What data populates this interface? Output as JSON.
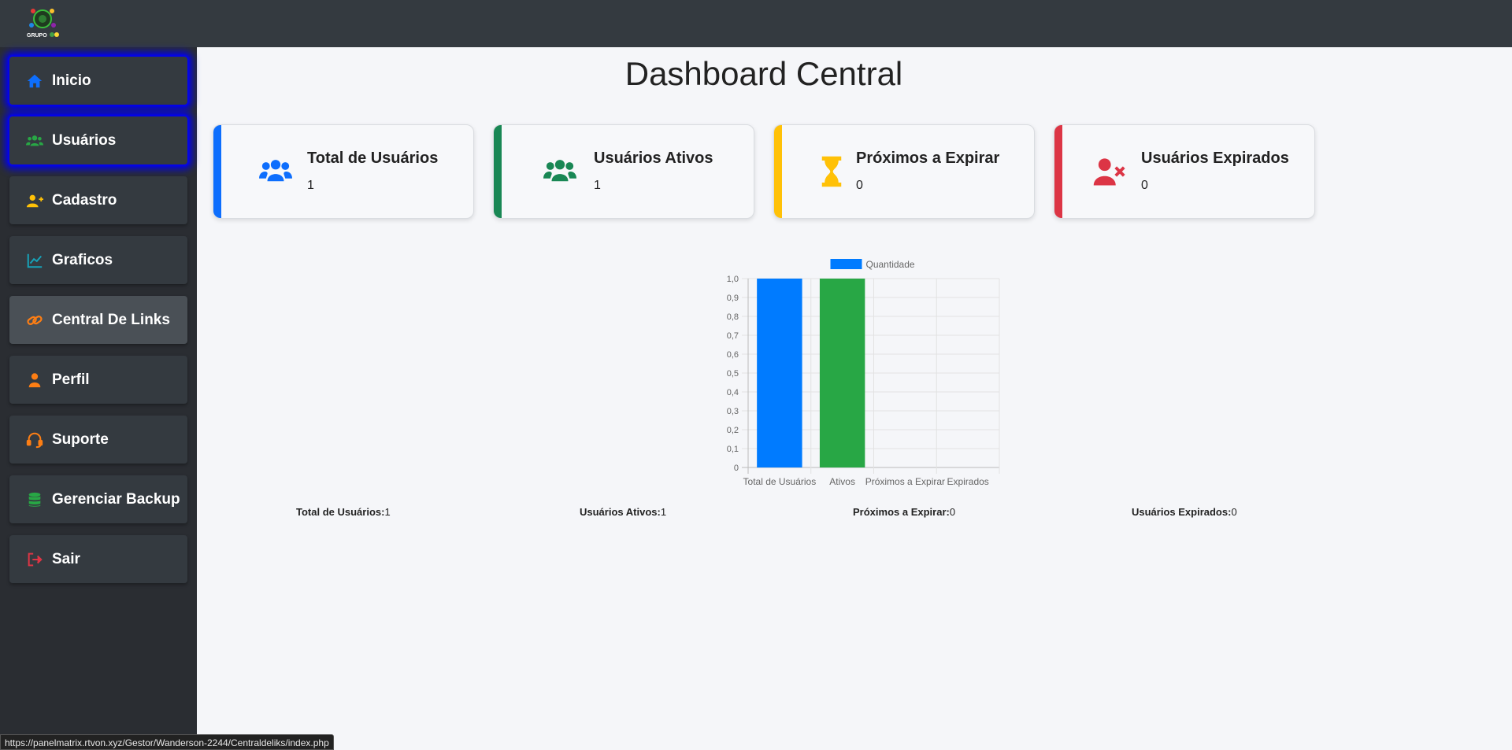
{
  "header": {
    "logo_text": "GRUPO"
  },
  "sidebar": {
    "items": [
      {
        "label": "Inicio",
        "icon": "home-icon",
        "color": "#0d6efd"
      },
      {
        "label": "Usuários",
        "icon": "users-icon",
        "color": "#28a745"
      },
      {
        "label": "Cadastro",
        "icon": "user-plus-icon",
        "color": "#ffc107"
      },
      {
        "label": "Graficos",
        "icon": "chart-line-icon",
        "color": "#17a2b8"
      },
      {
        "label": "Central De Links",
        "icon": "link-icon",
        "color": "#fd7e14"
      },
      {
        "label": "Perfil",
        "icon": "user-icon",
        "color": "#fd7e14"
      },
      {
        "label": "Suporte",
        "icon": "headset-icon",
        "color": "#fd7e14"
      },
      {
        "label": "Gerenciar Backup",
        "icon": "database-icon",
        "color": "#28a745"
      },
      {
        "label": "Sair",
        "icon": "sign-out-icon",
        "color": "#dc3545"
      }
    ]
  },
  "main": {
    "title": "Dashboard Central",
    "cards": [
      {
        "title": "Total de Usuários",
        "value": "1",
        "color": "#0d6efd",
        "icon": "users-icon"
      },
      {
        "title": "Usuários Ativos",
        "value": "1",
        "color": "#198754",
        "icon": "users-icon"
      },
      {
        "title": "Próximos a Expirar",
        "value": "0",
        "color": "#ffc107",
        "icon": "hourglass-icon"
      },
      {
        "title": "Usuários Expirados",
        "value": "0",
        "color": "#dc3545",
        "icon": "user-times-icon"
      }
    ],
    "summary": [
      {
        "label": "Total de Usuários:",
        "value": "1"
      },
      {
        "label": "Usuários Ativos:",
        "value": "1"
      },
      {
        "label": "Próximos a Expirar:",
        "value": "0"
      },
      {
        "label": "Usuários Expirados:",
        "value": "0"
      }
    ]
  },
  "chart_data": {
    "type": "bar",
    "categories": [
      "Total de Usuários",
      "Ativos",
      "Próximos a Expirar",
      "Expirados"
    ],
    "series": [
      {
        "name": "Quantidade",
        "values": [
          1,
          1,
          0,
          0
        ]
      }
    ],
    "bar_colors": [
      "#007bff",
      "#28a745",
      "#ffc107",
      "#dc3545"
    ],
    "legend_color": "#007bff",
    "ylim": [
      0,
      1
    ],
    "yticks": [
      "0",
      "0,1",
      "0,2",
      "0,3",
      "0,4",
      "0,5",
      "0,6",
      "0,7",
      "0,8",
      "0,9",
      "1,0"
    ],
    "legend": "top",
    "grid": true
  },
  "statusbar": {
    "url": "https://panelmatrix.rtvon.xyz/Gestor/Wanderson-2244/Centraldeliks/index.php"
  }
}
